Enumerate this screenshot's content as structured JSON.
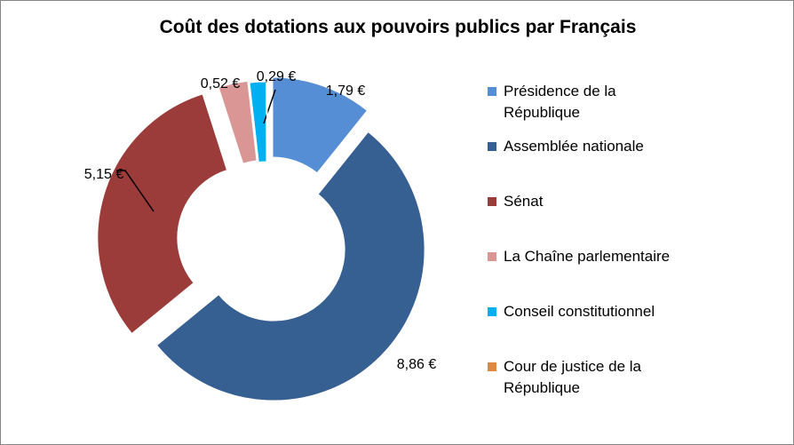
{
  "chart_data": {
    "type": "pie",
    "subtype": "doughnut-exploded",
    "title": "Coût des dotations aux pouvoirs publics par Français",
    "legend_position": "right",
    "unit": "€",
    "slices": [
      {
        "label": "Présidence de la République",
        "value": 1.79,
        "data_label": "1,79 €",
        "color": "#558ed5"
      },
      {
        "label": "Assemblée nationale",
        "value": 8.86,
        "data_label": "8,86 €",
        "color": "#376092"
      },
      {
        "label": "Sénat",
        "value": 5.15,
        "data_label": "5,15 €",
        "color": "#9b3c3a"
      },
      {
        "label": "La Chaîne parlementaire",
        "value": 0.52,
        "data_label": "0,52 €",
        "color": "#d99694"
      },
      {
        "label": "Conseil constitutionnel",
        "value": 0.29,
        "data_label": "0,29 €",
        "color": "#00b0f0"
      },
      {
        "label": "Cour de justice de la République",
        "value": 0.01,
        "data_label": "",
        "color": "#e0883f"
      }
    ]
  }
}
